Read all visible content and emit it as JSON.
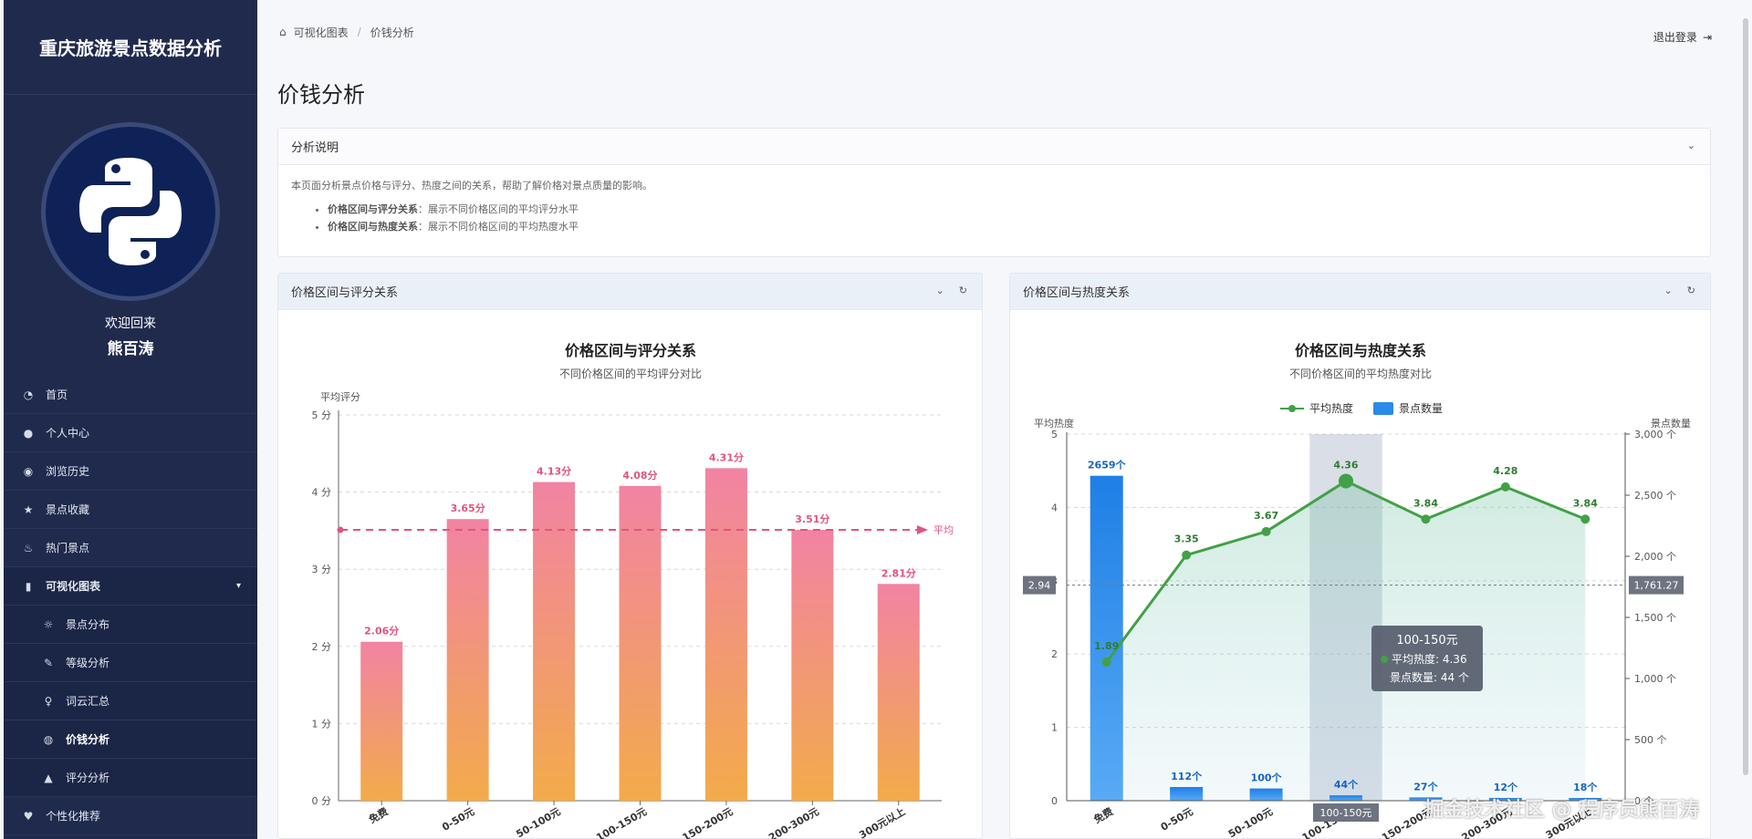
{
  "sidebar": {
    "brand": "重庆旅游景点数据分析",
    "welcome": "欢迎回来",
    "username": "熊百涛",
    "items": [
      {
        "label": "首页",
        "icon": "gauge-icon"
      },
      {
        "label": "个人中心",
        "icon": "user-icon"
      },
      {
        "label": "浏览历史",
        "icon": "eye-icon"
      },
      {
        "label": "景点收藏",
        "icon": "star-icon"
      },
      {
        "label": "热门景点",
        "icon": "fire-icon"
      },
      {
        "label": "可视化图表",
        "icon": "bar-chart-icon"
      },
      {
        "label": "景点分布",
        "icon": "sun-icon"
      },
      {
        "label": "等级分析",
        "icon": "feather-icon"
      },
      {
        "label": "词云汇总",
        "icon": "bulb-icon"
      },
      {
        "label": "价钱分析",
        "icon": "globe-icon"
      },
      {
        "label": "评分分析",
        "icon": "graduation-icon"
      },
      {
        "label": "个性化推荐",
        "icon": "heart-icon"
      }
    ]
  },
  "breadcrumb": {
    "root": "可视化图表",
    "current": "价钱分析"
  },
  "logout": "退出登录",
  "page_title": "价钱分析",
  "explain": {
    "header": "分析说明",
    "intro": "本页面分析景点价格与评分、热度之间的关系，帮助了解价格对景点质量的影响。",
    "items": [
      {
        "label": "价格区间与评分关系",
        "text": "：展示不同价格区间的平均评分水平"
      },
      {
        "label": "价格区间与热度关系",
        "text": "：展示不同价格区间的平均热度水平"
      }
    ]
  },
  "left_panel": {
    "header": "价格区间与评分关系"
  },
  "right_panel": {
    "header": "价格区间与热度关系"
  },
  "colors": {
    "sidebar": "#1f2a4d",
    "bar_top": "#f183a3",
    "bar_bottom": "#f3ab4a",
    "line": "#43a047",
    "blue_bar": "#2b8ae8"
  },
  "watermark": "掘金技术社区 @ 程序员熊百涛",
  "chart_data": [
    {
      "type": "bar",
      "title": "价格区间与评分关系",
      "subtitle": "不同价格区间的平均评分对比",
      "ylabel": "平均评分",
      "ylim": [
        0,
        5
      ],
      "yticks": [
        "0 分",
        "1 分",
        "2 分",
        "3 分",
        "4 分",
        "5 分"
      ],
      "categories": [
        "免费",
        "0-50元",
        "50-100元",
        "100-150元",
        "150-200元",
        "200-300元",
        "300元以上"
      ],
      "values": [
        2.06,
        3.65,
        4.13,
        4.08,
        4.31,
        3.51,
        2.81
      ],
      "labels": [
        "2.06分",
        "3.65分",
        "4.13分",
        "4.08分",
        "4.31分",
        "3.51分",
        "2.81分"
      ],
      "average": 3.51,
      "average_label": "平均"
    },
    {
      "type": "bar+line",
      "title": "价格区间与热度关系",
      "subtitle": "不同价格区间的平均热度对比",
      "ylabel": "平均热度",
      "y2label": "景点数量",
      "ylim": [
        0,
        5
      ],
      "y2lim": [
        0,
        3000
      ],
      "yticks": [
        "0",
        "1",
        "2",
        "3",
        "4",
        "5"
      ],
      "y2ticks": [
        "0 个",
        "500 个",
        "1,000 个",
        "1,500 个",
        "2,000 个",
        "2,500 个",
        "3,000 个"
      ],
      "legend": [
        "平均热度",
        "景点数量"
      ],
      "categories": [
        "免费",
        "0-50元",
        "50-100元",
        "100-150元",
        "150-200元",
        "200-300元",
        "300元以上"
      ],
      "series": [
        {
          "name": "平均热度",
          "values": [
            1.89,
            3.35,
            3.67,
            4.36,
            3.84,
            4.28,
            3.84
          ],
          "labels": [
            "1.89",
            "3.35",
            "3.67",
            "4.36",
            "3.84",
            "4.28",
            "3.84"
          ]
        },
        {
          "name": "景点数量",
          "values": [
            2659,
            112,
            100,
            44,
            27,
            12,
            18
          ],
          "labels": [
            "2659个",
            "112个",
            "100个",
            "44个",
            "27个",
            "12个",
            "18个"
          ]
        }
      ],
      "crosshair": {
        "y_left": "2.94",
        "y_right": "1,761.27",
        "x_label": "100-150元"
      },
      "tooltip": {
        "title": "100-150元",
        "line1": "平均热度: 4.36",
        "line2": "景点数量: 44 个"
      }
    }
  ]
}
